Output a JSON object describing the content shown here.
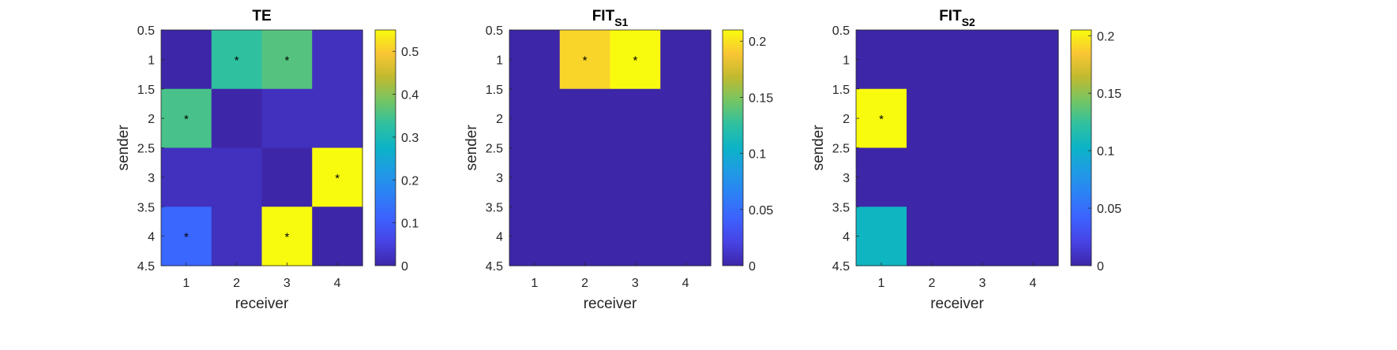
{
  "colors": {
    "colormap": "parula",
    "axis_color": "#262626"
  },
  "chart_data": [
    {
      "type": "heatmap",
      "title": "TE",
      "title_sub": "",
      "xlabel": "receiver",
      "ylabel": "sender",
      "x_categories": [
        "1",
        "2",
        "3",
        "4"
      ],
      "y_ticks": [
        "0.5",
        "1",
        "1.5",
        "2",
        "2.5",
        "3",
        "3.5",
        "4",
        "4.5"
      ],
      "clim": [
        0,
        0.55
      ],
      "colorbar_ticks": [
        0,
        0.1,
        0.2,
        0.3,
        0.4,
        0.5
      ],
      "colorbar_tick_labels": [
        "0",
        "0.1",
        "0.2",
        "0.3",
        "0.4",
        "0.5"
      ],
      "values": [
        [
          0.0,
          0.33,
          0.36,
          0.02
        ],
        [
          0.35,
          0.0,
          0.02,
          0.02
        ],
        [
          0.02,
          0.02,
          0.0,
          0.55
        ],
        [
          0.12,
          0.02,
          0.55,
          0.0
        ]
      ],
      "significant": [
        [
          false,
          true,
          true,
          false
        ],
        [
          true,
          false,
          false,
          false
        ],
        [
          false,
          false,
          false,
          true
        ],
        [
          true,
          false,
          true,
          false
        ]
      ],
      "significance_marker": "*"
    },
    {
      "type": "heatmap",
      "title": "FIT",
      "title_sub": "S1",
      "xlabel": "receiver",
      "ylabel": "sender",
      "x_categories": [
        "1",
        "2",
        "3",
        "4"
      ],
      "y_ticks": [
        "0.5",
        "1",
        "1.5",
        "2",
        "2.5",
        "3",
        "3.5",
        "4",
        "4.5"
      ],
      "clim": [
        0,
        0.21
      ],
      "colorbar_ticks": [
        0,
        0.05,
        0.1,
        0.15,
        0.2
      ],
      "colorbar_tick_labels": [
        "0",
        "0.05",
        "0.1",
        "0.15",
        "0.2"
      ],
      "values": [
        [
          0.0,
          0.195,
          0.21,
          0.0
        ],
        [
          0.0,
          0.0,
          0.0,
          0.0
        ],
        [
          0.0,
          0.0,
          0.0,
          0.0
        ],
        [
          0.0,
          0.0,
          0.0,
          0.0
        ]
      ],
      "significant": [
        [
          false,
          true,
          true,
          false
        ],
        [
          false,
          false,
          false,
          false
        ],
        [
          false,
          false,
          false,
          false
        ],
        [
          false,
          false,
          false,
          false
        ]
      ],
      "significance_marker": "*"
    },
    {
      "type": "heatmap",
      "title": "FIT",
      "title_sub": "S2",
      "xlabel": "receiver",
      "ylabel": "sender",
      "x_categories": [
        "1",
        "2",
        "3",
        "4"
      ],
      "y_ticks": [
        "0.5",
        "1",
        "1.5",
        "2",
        "2.5",
        "3",
        "3.5",
        "4",
        "4.5"
      ],
      "clim": [
        0,
        0.205
      ],
      "colorbar_ticks": [
        0,
        0.05,
        0.1,
        0.15,
        0.2
      ],
      "colorbar_tick_labels": [
        "0",
        "0.05",
        "0.1",
        "0.15",
        "0.2"
      ],
      "values": [
        [
          0.0,
          0.0,
          0.0,
          0.0
        ],
        [
          0.205,
          0.0,
          0.0,
          0.0
        ],
        [
          0.0,
          0.0,
          0.0,
          0.0
        ],
        [
          0.105,
          0.0,
          0.0,
          0.0
        ]
      ],
      "significant": [
        [
          false,
          false,
          false,
          false
        ],
        [
          true,
          false,
          false,
          false
        ],
        [
          false,
          false,
          false,
          false
        ],
        [
          false,
          false,
          false,
          false
        ]
      ],
      "significance_marker": "*"
    }
  ]
}
